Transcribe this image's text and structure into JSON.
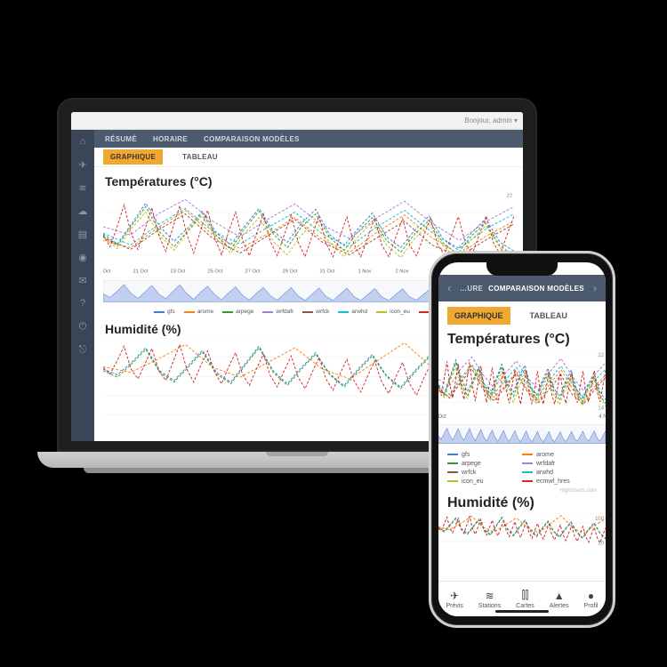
{
  "colors": {
    "bg_dark": "#000000",
    "sidebar": "#3a4556",
    "topnav": "#4c5a6e",
    "accent": "#f0a830",
    "grid": "#ececec",
    "text": "#222222",
    "muted": "#666666",
    "scrubber_fill": "#9fb4ea",
    "scrubber_stroke": "#6f87c8"
  },
  "laptop": {
    "chrome_right": "Bonjour, admin ▾",
    "sidebar_icons": [
      "home",
      "plane",
      "wifi",
      "cloud",
      "layers",
      "user",
      "mail",
      "help",
      "power",
      "exit"
    ],
    "topnav": [
      "RÉSUMÉ",
      "HORAIRE",
      "COMPARAISON MODÈLES"
    ],
    "subtabs": {
      "active": "GRAPHIQUE",
      "other": "TABLEAU"
    }
  },
  "phone": {
    "topnav_left": "…URE",
    "topnav_main": "COMPARAISON MODÈLES",
    "tabs": {
      "active": "GRAPHIQUE",
      "other": "TABLEAU"
    },
    "credits": "Highcharts.com",
    "bottomnav": [
      {
        "icon": "✈",
        "label": "Prévis"
      },
      {
        "icon": "≋",
        "label": "Stations"
      },
      {
        "icon": "⫴",
        "label": "Cartes"
      },
      {
        "icon": "▲",
        "label": "Alertes"
      },
      {
        "icon": "●",
        "label": "Profil"
      }
    ]
  },
  "charts": {
    "temp": {
      "title": "Températures (°C)",
      "ylim": [
        14,
        22
      ],
      "xlabels_laptop": [
        "19 Oct",
        "21 Oct",
        "23 Oct",
        "25 Oct",
        "27 Oct",
        "29 Oct",
        "31 Oct",
        "1 Nov",
        "2 Nov",
        "3 Nov",
        "4 Nov",
        "5 Nov"
      ],
      "xlabels_phone": [
        "28 Oct",
        "4 Nov"
      ]
    },
    "hum": {
      "title": "Humidité (%)",
      "ylim": [
        20,
        100
      ]
    },
    "models": [
      {
        "key": "gfs",
        "color": "#3b7fd4"
      },
      {
        "key": "arome",
        "color": "#ff7f0e"
      },
      {
        "key": "arpege",
        "color": "#2ca02c"
      },
      {
        "key": "wrfdafr",
        "color": "#a97cd8"
      },
      {
        "key": "wrfck",
        "color": "#8c564b"
      },
      {
        "key": "arwhd",
        "color": "#17becf"
      },
      {
        "key": "icon_eu",
        "color": "#bcbd22"
      },
      {
        "key": "ecmwf_hres",
        "color": "#d62728"
      }
    ],
    "series": {
      "gfs": [
        17.2,
        16.1,
        18.3,
        20.6,
        18.0,
        16.4,
        17.9,
        19.7,
        17.3,
        16.0,
        18.1,
        20.0,
        17.5,
        16.3,
        18.4,
        19.9,
        17.1,
        15.9,
        17.8,
        19.5,
        16.9,
        15.7,
        17.6,
        19.2,
        16.6,
        15.5,
        17.3,
        18.9,
        16.3,
        15.3
      ],
      "arome": [
        16.5,
        15.7,
        17.9,
        19.8,
        17.1,
        15.6,
        17.2,
        19.0,
        16.6,
        15.2,
        17.4,
        19.3,
        16.8,
        15.0,
        17.0,
        18.6
      ],
      "arpege": [
        17.0,
        15.9,
        18.1,
        20.2,
        17.4,
        15.8,
        17.6,
        19.5,
        17.0,
        15.5,
        17.8,
        19.7,
        17.2,
        15.7,
        18.0,
        19.4,
        16.8,
        15.4,
        17.5,
        19.0,
        16.5,
        15.2,
        17.2,
        18.7,
        16.2,
        15.0,
        17.0,
        18.4,
        15.9,
        14.8
      ],
      "wrfdafr": [
        18.0,
        17.1,
        19.4,
        21.0,
        18.6,
        16.9,
        18.8,
        20.5,
        18.2,
        16.7,
        19.0,
        20.8,
        18.4,
        16.5,
        18.6,
        20.2
      ],
      "wrfck": [
        16.8,
        15.5,
        17.6,
        19.4,
        16.7,
        15.1,
        17.0,
        18.8,
        16.3,
        14.9,
        16.8,
        18.6,
        16.0,
        14.7,
        16.6,
        18.3
      ],
      "arwhd": [
        17.3,
        16.0,
        18.2,
        20.0,
        17.5,
        16.1,
        17.9,
        19.6,
        17.2,
        15.8,
        18.0,
        19.8,
        17.4,
        15.6,
        17.8,
        19.4
      ],
      "icon_eu": [
        16.9,
        15.6,
        17.8,
        19.6,
        17.0,
        15.4,
        17.5,
        19.2,
        16.7,
        15.1,
        17.3,
        19.0,
        16.4,
        14.9,
        17.1,
        18.7,
        16.2,
        14.7,
        16.9,
        18.5,
        16.0,
        14.6,
        16.7,
        18.3,
        15.9,
        14.5,
        16.6,
        18.1,
        15.7,
        14.4
      ],
      "ecmwf_hres": [
        17.1,
        15.8,
        18.0,
        20.4,
        17.3,
        15.5,
        17.7,
        20.1,
        17.0,
        15.3,
        17.9,
        20.3,
        17.2,
        15.1,
        17.6,
        19.8,
        16.8,
        14.9,
        17.4,
        19.6,
        16.6,
        14.8,
        17.2,
        19.4,
        16.4,
        14.8,
        17.1,
        19.3,
        16.3,
        14.7,
        17.0,
        19.2,
        16.2,
        14.7,
        16.9,
        19.1,
        16.1,
        14.7,
        16.8,
        19.0,
        16.0,
        14.7,
        16.8,
        18.9,
        16.0,
        14.8,
        16.9,
        19.0,
        16.1,
        14.9,
        17.0,
        19.1,
        16.2,
        15.0,
        17.1,
        19.2,
        16.3,
        15.0,
        17.1,
        19.2
      ]
    },
    "hum_series": {
      "gfs": [
        62,
        55,
        70,
        88,
        60,
        48,
        66,
        85,
        58,
        46,
        68,
        90,
        60,
        44,
        64,
        82,
        56,
        42,
        62,
        80,
        54,
        40,
        60,
        78,
        52,
        38,
        58,
        76,
        50,
        36
      ],
      "arome": [
        65,
        58,
        74,
        92,
        64,
        52,
        70,
        88,
        62,
        50,
        72,
        94,
        64,
        48,
        68,
        86
      ],
      "arpege": [
        60,
        52,
        68,
        86,
        58,
        46,
        64,
        83,
        56,
        44,
        66,
        88,
        58,
        42,
        62,
        80,
        55,
        40,
        60,
        78,
        53,
        38,
        58,
        76,
        51,
        36,
        56,
        74,
        49,
        34
      ],
      "ecmwf_hres": [
        64,
        56,
        72,
        90,
        62,
        50,
        68,
        87,
        60,
        48,
        70,
        92,
        62,
        46,
        66,
        84,
        58,
        44,
        64,
        82,
        56,
        42,
        62,
        80,
        54,
        40,
        60,
        78,
        52,
        38,
        58,
        76,
        50,
        36,
        56,
        74,
        48,
        34,
        54,
        72,
        46,
        32,
        52,
        70,
        44,
        30,
        50,
        68,
        42,
        28,
        48,
        66,
        40,
        26,
        46,
        64,
        38,
        24,
        44,
        62
      ]
    }
  }
}
